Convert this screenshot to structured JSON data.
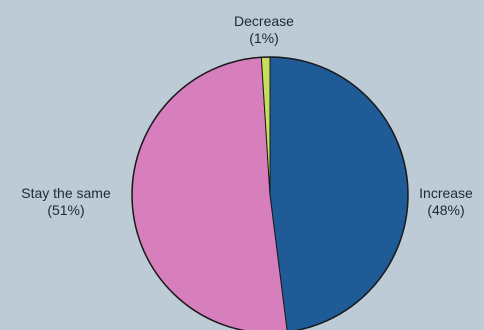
{
  "chart_data": {
    "type": "pie",
    "title": "",
    "slices": [
      {
        "label": "Increase",
        "value": 48,
        "value_label": "(48%)",
        "color": "#1f5b97"
      },
      {
        "label": "Stay the same",
        "value": 51,
        "value_label": "(51%)",
        "color": "#d77fbd"
      },
      {
        "label": "Decrease",
        "value": 1,
        "value_label": "(1%)",
        "color": "#c5df5d"
      }
    ],
    "start_angle_degrees": 0,
    "direction": "clockwise",
    "outline_color": "#1a1a1a",
    "background_color": "#bccbd6"
  }
}
